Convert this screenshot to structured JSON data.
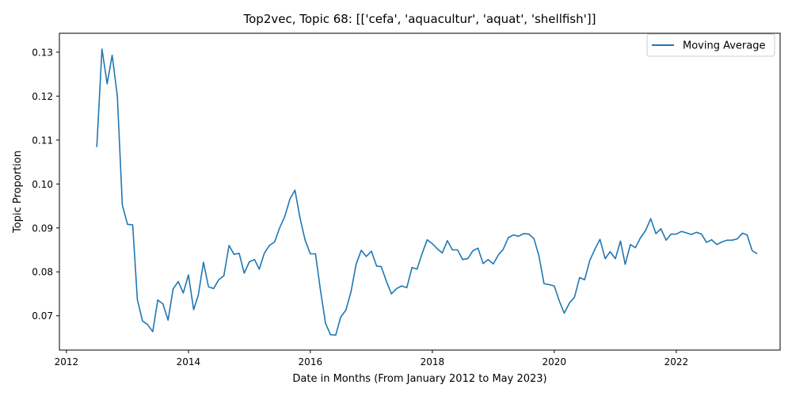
{
  "chart_data": {
    "type": "line",
    "title": "Top2vec, Topic 68: [['cefa', 'aquacultur', 'aquat', 'shellfish']]",
    "xlabel": "Date in Months (From January 2012 to May 2023)",
    "ylabel": "Topic Proportion",
    "xlim": [
      "2011-11-20",
      "2023-09-15"
    ],
    "ylim": [
      0.0622,
      0.1343
    ],
    "x_ticks": [
      "2012",
      "2014",
      "2016",
      "2018",
      "2020",
      "2022"
    ],
    "y_ticks": [
      "0.07",
      "0.08",
      "0.09",
      "0.10",
      "0.11",
      "0.12",
      "0.13"
    ],
    "legend": {
      "position": "top-right",
      "entries": [
        "Moving Average"
      ]
    },
    "grid": false,
    "colors": {
      "line": "#1f77b4"
    },
    "series": [
      {
        "name": "Moving Average",
        "x": [
          "2012-07",
          "2012-08",
          "2012-09",
          "2012-10",
          "2012-11",
          "2012-12",
          "2013-01",
          "2013-02",
          "2013-03",
          "2013-04",
          "2013-05",
          "2013-06",
          "2013-07",
          "2013-08",
          "2013-09",
          "2013-10",
          "2013-11",
          "2013-12",
          "2014-01",
          "2014-02",
          "2014-03",
          "2014-04",
          "2014-05",
          "2014-06",
          "2014-07",
          "2014-08",
          "2014-09",
          "2014-10",
          "2014-11",
          "2014-12",
          "2015-01",
          "2015-02",
          "2015-03",
          "2015-04",
          "2015-05",
          "2015-06",
          "2015-07",
          "2015-08",
          "2015-09",
          "2015-10",
          "2015-11",
          "2015-12",
          "2016-01",
          "2016-02",
          "2016-03",
          "2016-04",
          "2016-05",
          "2016-06",
          "2016-07",
          "2016-08",
          "2016-09",
          "2016-10",
          "2016-11",
          "2016-12",
          "2017-01",
          "2017-02",
          "2017-03",
          "2017-04",
          "2017-05",
          "2017-06",
          "2017-07",
          "2017-08",
          "2017-09",
          "2017-10",
          "2017-11",
          "2017-12",
          "2018-01",
          "2018-02",
          "2018-03",
          "2018-04",
          "2018-05",
          "2018-06",
          "2018-07",
          "2018-08",
          "2018-09",
          "2018-10",
          "2018-11",
          "2018-12",
          "2019-01",
          "2019-02",
          "2019-03",
          "2019-04",
          "2019-05",
          "2019-06",
          "2019-07",
          "2019-08",
          "2019-09",
          "2019-10",
          "2019-11",
          "2019-12",
          "2020-01",
          "2020-02",
          "2020-03",
          "2020-04",
          "2020-05",
          "2020-06",
          "2020-07",
          "2020-08",
          "2020-09",
          "2020-10",
          "2020-11",
          "2020-12",
          "2021-01",
          "2021-02",
          "2021-03",
          "2021-04",
          "2021-05",
          "2021-06",
          "2021-07",
          "2021-08",
          "2021-09",
          "2021-10",
          "2021-11",
          "2021-12",
          "2022-01",
          "2022-02",
          "2022-03",
          "2022-04",
          "2022-05",
          "2022-06",
          "2022-07",
          "2022-08",
          "2022-09",
          "2022-10",
          "2022-11",
          "2022-12",
          "2023-01",
          "2023-02",
          "2023-03",
          "2023-04",
          "2023-05"
        ],
        "values": [
          0.1084,
          0.1307,
          0.1228,
          0.1293,
          0.12,
          0.0952,
          0.0908,
          0.0907,
          0.0737,
          0.0688,
          0.068,
          0.0664,
          0.0736,
          0.0727,
          0.069,
          0.0761,
          0.0778,
          0.0752,
          0.0793,
          0.0714,
          0.0747,
          0.0822,
          0.0766,
          0.0762,
          0.0782,
          0.0791,
          0.086,
          0.084,
          0.0842,
          0.0797,
          0.0823,
          0.0828,
          0.0806,
          0.0843,
          0.086,
          0.0868,
          0.09,
          0.0926,
          0.0966,
          0.0986,
          0.0921,
          0.0872,
          0.0841,
          0.0841,
          0.076,
          0.0683,
          0.0657,
          0.0656,
          0.0697,
          0.0713,
          0.0755,
          0.0817,
          0.0849,
          0.0835,
          0.0847,
          0.0813,
          0.0812,
          0.0778,
          0.075,
          0.0762,
          0.0768,
          0.0764,
          0.081,
          0.0806,
          0.0842,
          0.0873,
          0.0864,
          0.0852,
          0.0843,
          0.0871,
          0.085,
          0.085,
          0.0828,
          0.083,
          0.0848,
          0.0854,
          0.0819,
          0.0828,
          0.0818,
          0.0839,
          0.0851,
          0.0878,
          0.0884,
          0.0881,
          0.0887,
          0.0886,
          0.0876,
          0.0837,
          0.0773,
          0.0771,
          0.0768,
          0.0733,
          0.0706,
          0.0729,
          0.0742,
          0.0787,
          0.0782,
          0.0826,
          0.0852,
          0.0874,
          0.083,
          0.0846,
          0.083,
          0.087,
          0.0817,
          0.0862,
          0.0855,
          0.0878,
          0.0894,
          0.0921,
          0.0887,
          0.0898,
          0.0872,
          0.0886,
          0.0886,
          0.0892,
          0.0889,
          0.0885,
          0.089,
          0.0886,
          0.0867,
          0.0873,
          0.0862,
          0.0868,
          0.0872,
          0.0872,
          0.0875,
          0.0888,
          0.0884,
          0.0848,
          0.0841
        ]
      }
    ]
  }
}
